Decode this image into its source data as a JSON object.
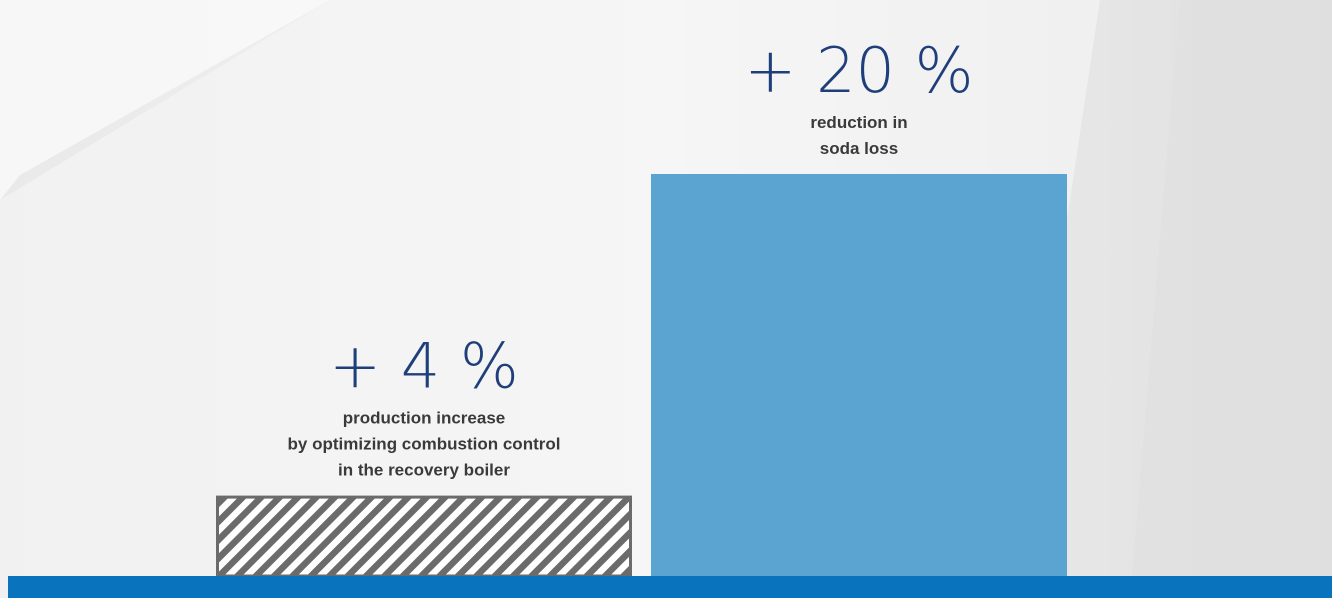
{
  "chart_data": {
    "type": "bar",
    "categories": [
      "production increase by optimizing combustion control in the recovery boiler",
      "reduction in soda loss"
    ],
    "values": [
      4,
      20
    ],
    "value_labels": [
      "+ 4 %",
      "+ 20 %"
    ],
    "captions": [
      [
        "production increase",
        "by optimizing combustion control",
        "in the recovery boiler"
      ],
      [
        "reduction in",
        "soda loss"
      ]
    ],
    "unit": "%",
    "ylim": [
      0,
      20
    ],
    "grid": false,
    "legend": "none",
    "colors": {
      "bar_solid": "#5ba3d0",
      "bar_hatch_border": "#6b6b6b",
      "bar_hatch_stripe": "#6b6b6b",
      "baseline": "#0a73bd",
      "value_text": "#1f3f7a",
      "caption_text": "#3a3a3a"
    }
  }
}
